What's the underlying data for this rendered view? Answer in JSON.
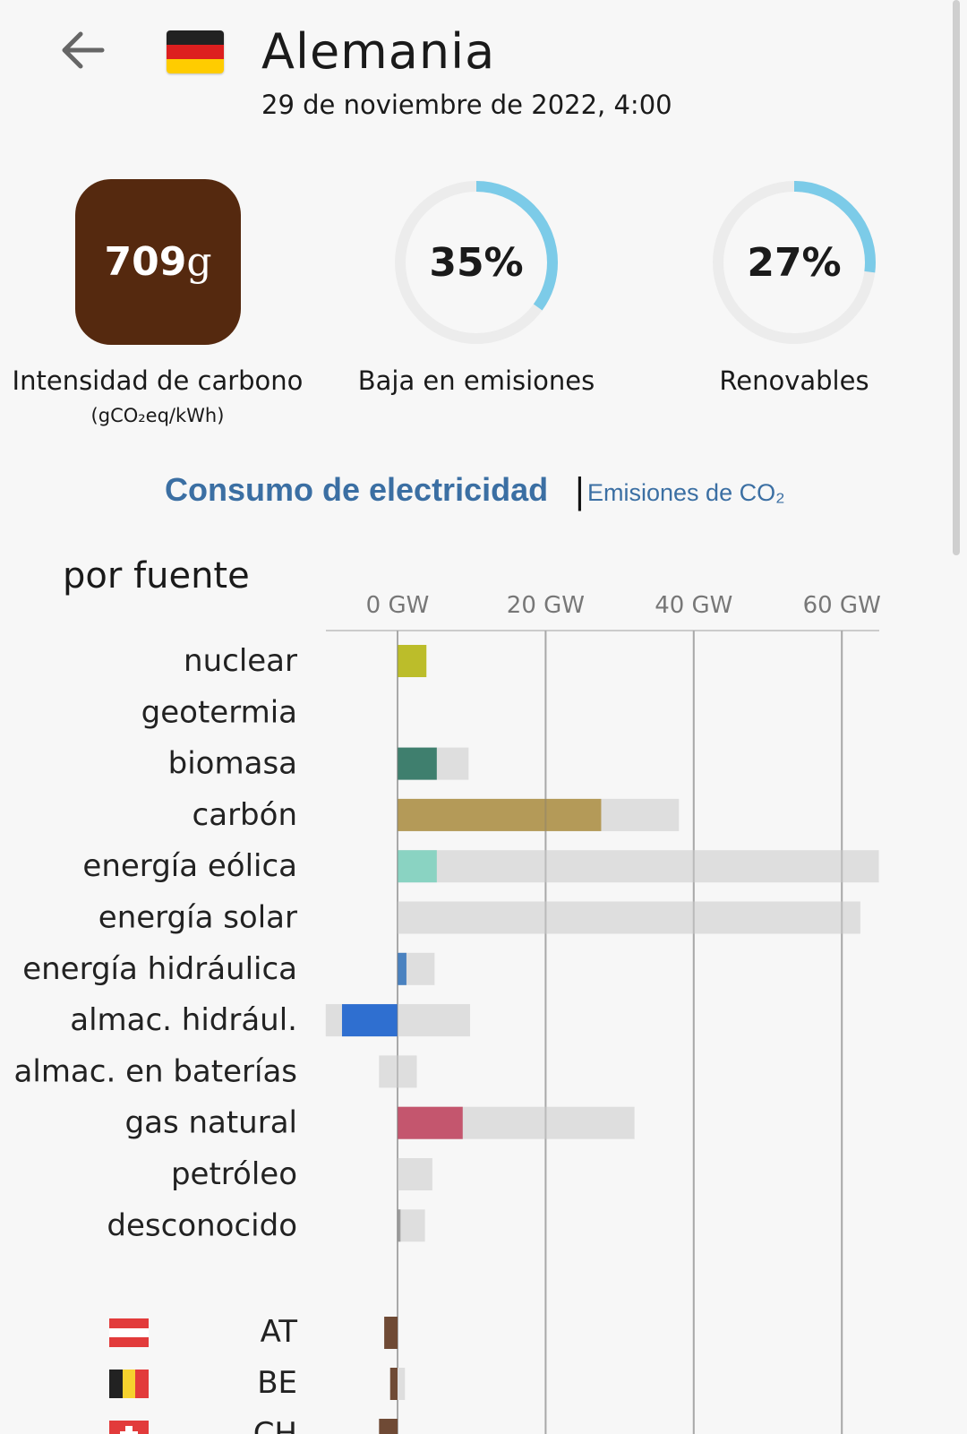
{
  "header": {
    "back_icon": "arrow-left-icon",
    "flag_icon": "germany-flag-icon",
    "title": "Alemania",
    "date": "29 de noviembre de 2022, 4:00"
  },
  "stats": {
    "carbon": {
      "value": "709",
      "unit": "g",
      "label": "Intensidad de carbono",
      "sublabel": "(gCO₂eq/kWh)",
      "color": "#55290f"
    },
    "low_emission": {
      "value": "35%",
      "fraction": 0.35,
      "label": "Baja en emisiones"
    },
    "renewables": {
      "value": "27%",
      "fraction": 0.27,
      "label": "Renovables"
    },
    "ring_color": "#7ccbe8",
    "ring_track_color": "#ececec"
  },
  "tabs": {
    "active": "Consumo de electricidad",
    "separator": "|",
    "inactive": "Emisiones de CO₂"
  },
  "section_title": "por fuente",
  "chart_data": {
    "type": "bar",
    "orientation": "horizontal",
    "xunit": "GW",
    "xticks": [
      "0 GW",
      "20 GW",
      "40 GW",
      "60 GW"
    ],
    "tick_values": [
      0,
      20,
      40,
      60
    ],
    "xlim": [
      -9.7,
      65
    ],
    "categories": [
      "nuclear",
      "geotermia",
      "biomasa",
      "carbón",
      "energía eólica",
      "energía solar",
      "energía hidráulica",
      "almac. hidrául.",
      "almac. en baterías",
      "gas natural",
      "petróleo",
      "desconocido"
    ],
    "series": [
      {
        "role": "production",
        "values": [
          3.9,
          0,
          5.3,
          27.5,
          5.3,
          0,
          1.2,
          -7.5,
          0,
          8.8,
          0,
          0.4
        ]
      },
      {
        "role": "capacity",
        "min": [
          0,
          0,
          0,
          0,
          0,
          0,
          0,
          -9.7,
          -2.5,
          0,
          0,
          0
        ],
        "max": [
          0,
          0,
          9.6,
          38,
          65,
          62.5,
          5,
          9.8,
          2.6,
          32,
          4.7,
          3.7
        ]
      }
    ],
    "colors": [
      "#bcbd2a",
      "#3f7f6e",
      "#3f7f6e",
      "#b49a58",
      "#8ad3c2",
      "#f0c93d",
      "#4a82c0",
      "#2f6fd0",
      "#6a8fd6",
      "#c4566e",
      "#7e5a3a",
      "#9e9e9e"
    ],
    "capacity_color": "#dedede",
    "exchanges": [
      {
        "code": "AT",
        "flag_icon": "austria-flag-icon",
        "value": -1.8,
        "color": "#6f4a35"
      },
      {
        "code": "BE",
        "flag_icon": "belgium-flag-icon",
        "value": -1.0,
        "max": 1.0,
        "color": "#6f4a35"
      },
      {
        "code": "CH",
        "flag_icon": "switzerland-flag-icon",
        "value": -2.5,
        "color": "#6f4a35"
      }
    ]
  }
}
